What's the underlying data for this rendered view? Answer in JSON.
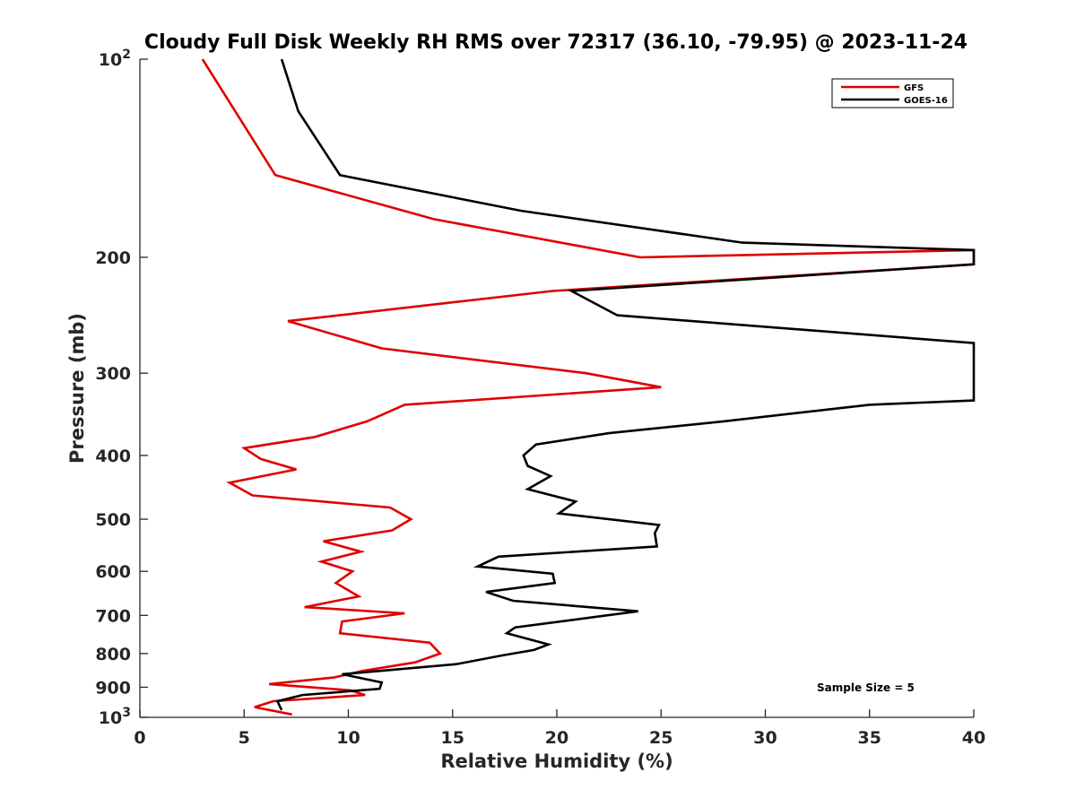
{
  "chart_data": {
    "type": "line",
    "title": "Cloudy Full Disk Weekly RH RMS over 72317 (36.10, -79.95) @ 2023-11-24",
    "xlabel": "Relative Humidity (%)",
    "ylabel": "Pressure (mb)",
    "xlim": [
      0,
      40
    ],
    "ylim": [
      100,
      1000
    ],
    "y_scale": "log",
    "y_reversed": true,
    "x_ticks": [
      0,
      5,
      10,
      15,
      20,
      25,
      30,
      35,
      40
    ],
    "y_ticks": [
      100,
      200,
      300,
      400,
      500,
      600,
      700,
      800,
      900,
      1000
    ],
    "y_tick_labels": {
      "100": "10^2",
      "1000": "10^3"
    },
    "grid": false,
    "legend_position": "top-right",
    "annotation": "Sample Size = 5",
    "series": [
      {
        "name": "GFS",
        "color": "#e00000",
        "points": [
          [
            3.0,
            100
          ],
          [
            6.5,
            150
          ],
          [
            14.1,
            175
          ],
          [
            24.0,
            200
          ],
          [
            40.0,
            195
          ],
          [
            40.0,
            205
          ],
          [
            19.8,
            225
          ],
          [
            7.1,
            250
          ],
          [
            11.6,
            275
          ],
          [
            21.4,
            300
          ],
          [
            25.0,
            315
          ],
          [
            12.7,
            335
          ],
          [
            10.9,
            355
          ],
          [
            8.4,
            375
          ],
          [
            5.0,
            390
          ],
          [
            5.8,
            405
          ],
          [
            7.5,
            420
          ],
          [
            4.3,
            440
          ],
          [
            5.4,
            460
          ],
          [
            12.0,
            480
          ],
          [
            13.0,
            500
          ],
          [
            12.1,
            520
          ],
          [
            8.8,
            540
          ],
          [
            10.6,
            560
          ],
          [
            8.7,
            580
          ],
          [
            10.2,
            600
          ],
          [
            9.4,
            625
          ],
          [
            10.5,
            655
          ],
          [
            7.9,
            680
          ],
          [
            12.7,
            695
          ],
          [
            9.7,
            715
          ],
          [
            9.6,
            745
          ],
          [
            13.9,
            770
          ],
          [
            14.4,
            800
          ],
          [
            13.2,
            825
          ],
          [
            10.7,
            850
          ],
          [
            9.3,
            870
          ],
          [
            6.2,
            890
          ],
          [
            10.1,
            910
          ],
          [
            10.8,
            925
          ],
          [
            6.4,
            945
          ],
          [
            5.5,
            965
          ],
          [
            7.3,
            990
          ]
        ]
      },
      {
        "name": "GOES-16",
        "color": "#000000",
        "points": [
          [
            6.8,
            100
          ],
          [
            7.6,
            120
          ],
          [
            9.6,
            150
          ],
          [
            18.3,
            170
          ],
          [
            28.9,
            190
          ],
          [
            40.0,
            195
          ],
          [
            40.0,
            205
          ],
          [
            20.7,
            225
          ],
          [
            22.9,
            245
          ],
          [
            40.0,
            270
          ],
          [
            40.0,
            330
          ],
          [
            35.0,
            335
          ],
          [
            28.0,
            355
          ],
          [
            22.5,
            370
          ],
          [
            19.0,
            385
          ],
          [
            18.4,
            400
          ],
          [
            18.6,
            415
          ],
          [
            19.7,
            430
          ],
          [
            18.6,
            450
          ],
          [
            20.9,
            470
          ],
          [
            20.1,
            490
          ],
          [
            24.9,
            510
          ],
          [
            24.7,
            525
          ],
          [
            24.8,
            550
          ],
          [
            17.2,
            570
          ],
          [
            16.2,
            590
          ],
          [
            19.8,
            605
          ],
          [
            19.9,
            625
          ],
          [
            16.6,
            645
          ],
          [
            17.9,
            665
          ],
          [
            23.9,
            690
          ],
          [
            18.0,
            730
          ],
          [
            17.6,
            745
          ],
          [
            19.6,
            775
          ],
          [
            18.9,
            790
          ],
          [
            17.4,
            805
          ],
          [
            15.2,
            830
          ],
          [
            9.7,
            860
          ],
          [
            11.6,
            885
          ],
          [
            11.5,
            905
          ],
          [
            7.8,
            925
          ],
          [
            6.6,
            945
          ],
          [
            6.8,
            975
          ]
        ]
      }
    ]
  }
}
